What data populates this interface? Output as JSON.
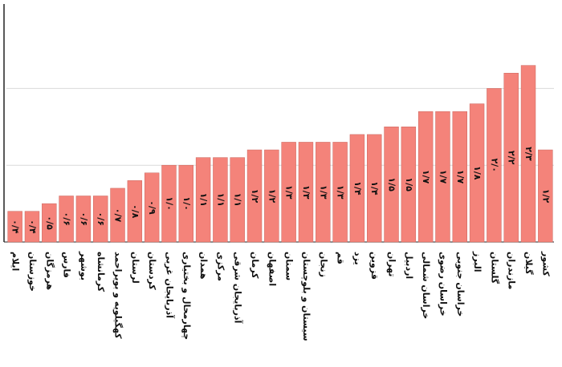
{
  "chart_data": {
    "type": "bar",
    "categories": [
      "ایلام",
      "خوزستان",
      "هرمزگان",
      "فارس",
      "بوشهر",
      "کرمانشاه",
      "کهگیلویه و بویراحمد",
      "لرستان",
      "کردستان",
      "آذربایجان غربی",
      "چهارمحال و بختیاری",
      "همدان",
      "مرکزی",
      "آذربایجان شرقی",
      "کرمان",
      "اصفهان",
      "سمنان",
      "سیستان و بلوچستان",
      "زنجان",
      "قم",
      "یزد",
      "قزوین",
      "تهران",
      "اردبیل",
      "خراسان شمالی",
      "خراسان رضوی",
      "خراسان جنوبی",
      "البرز",
      "گلستان",
      "مازندران",
      "گیلان",
      "کشور"
    ],
    "values": [
      0.4,
      0.4,
      0.5,
      0.6,
      0.6,
      0.6,
      0.7,
      0.8,
      0.9,
      1.0,
      1.0,
      1.1,
      1.1,
      1.1,
      1.2,
      1.2,
      1.3,
      1.3,
      1.3,
      1.3,
      1.4,
      1.4,
      1.5,
      1.5,
      1.7,
      1.7,
      1.7,
      1.8,
      2.0,
      2.2,
      2.3,
      1.2
    ],
    "value_labels": [
      "۰/۴",
      "۰/۴",
      "۰/۵",
      "۰/۶",
      "۰/۶",
      "۰/۶",
      "۰/۷",
      "۰/۸",
      "۰/۹",
      "۱/۰",
      "۱/۰",
      "۱/۱",
      "۱/۱",
      "۱/۱",
      "۱/۲",
      "۱/۲",
      "۱/۳",
      "۱/۳",
      "۱/۳",
      "۱/۳",
      "۱/۴",
      "۱/۴",
      "۱/۵",
      "۱/۵",
      "۱/۷",
      "۱/۷",
      "۱/۷",
      "۱/۸",
      "۲/۰",
      "۲/۲",
      "۲/۳",
      "۱/۲"
    ],
    "color": "#f4837a",
    "ylim": [
      0,
      3.1
    ],
    "yticks": [
      1,
      2
    ],
    "grid": true
  }
}
